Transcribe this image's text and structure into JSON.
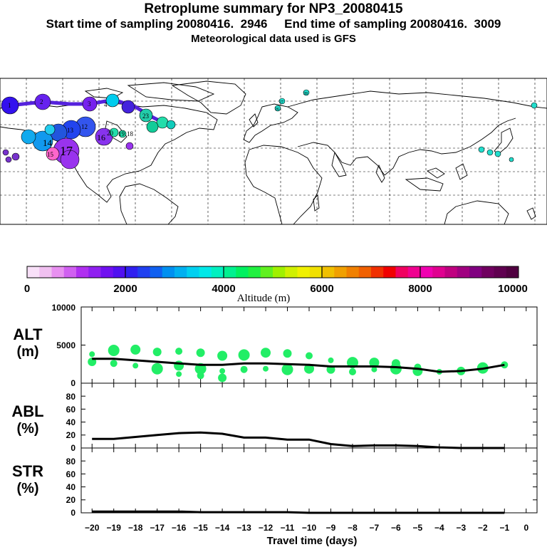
{
  "header": {
    "title": "Retroplume summary for NP3_20080415",
    "start_label": "Start time of sampling 20080416.  2946",
    "end_label": "End time of sampling 20080416.  3009",
    "met_line": "Meteorological data used is GFS"
  },
  "colorbar": {
    "xlabel": "Altitude (m)",
    "tick_labels": [
      "0",
      "2000",
      "4000",
      "6000",
      "8000",
      "10000"
    ],
    "colors": [
      "#f8e0f8",
      "#f0c0f0",
      "#e890f0",
      "#d060f0",
      "#b030f0",
      "#9020f0",
      "#7010f0",
      "#5010f0",
      "#3020f0",
      "#2040f0",
      "#1060f0",
      "#0090f0",
      "#00b0f0",
      "#00d0f0",
      "#00e8e8",
      "#00f0c0",
      "#00f090",
      "#00f060",
      "#20f040",
      "#60f020",
      "#a0f000",
      "#d0f000",
      "#f0f000",
      "#f0e000",
      "#f0c000",
      "#f0a000",
      "#f08000",
      "#f06000",
      "#f03000",
      "#f00000",
      "#f00060",
      "#f00090",
      "#f000b0",
      "#e00090",
      "#c00080",
      "#a00080",
      "#800080",
      "#700060",
      "#600050",
      "#500040"
    ]
  },
  "map_labels": [
    "1",
    "2",
    "3",
    "4",
    "12",
    "13",
    "14",
    "15",
    "17",
    "16",
    "20",
    "19",
    "18",
    "23",
    "26",
    "27",
    "28"
  ],
  "chart_data": [
    {
      "type": "line",
      "panel": "ALT",
      "ylabel_line1": "ALT",
      "ylabel_line2": "(m)",
      "ylim": [
        0,
        10000
      ],
      "ytick_labels": [
        "10000",
        "5000",
        "0"
      ],
      "x": [
        -20,
        -19,
        -18,
        -17,
        -16,
        -15,
        -14,
        -13,
        -12,
        -11,
        -10,
        -9,
        -8,
        -7,
        -6,
        -5,
        -4,
        -3,
        -2,
        -1
      ],
      "values": [
        3200,
        3200,
        3000,
        2800,
        2600,
        2400,
        2400,
        2600,
        2600,
        2500,
        2400,
        2200,
        2200,
        2200,
        2100,
        1900,
        1500,
        1600,
        1900,
        2400
      ],
      "points": [
        {
          "x": -20,
          "y": 3800
        },
        {
          "x": -20,
          "y": 2800
        },
        {
          "x": -19,
          "y": 4300
        },
        {
          "x": -19,
          "y": 2600
        },
        {
          "x": -18,
          "y": 4400
        },
        {
          "x": -18,
          "y": 2300
        },
        {
          "x": -17,
          "y": 4100
        },
        {
          "x": -17,
          "y": 1900
        },
        {
          "x": -16,
          "y": 4200
        },
        {
          "x": -16,
          "y": 2300
        },
        {
          "x": -16,
          "y": 1200
        },
        {
          "x": -15,
          "y": 4000
        },
        {
          "x": -15,
          "y": 1900
        },
        {
          "x": -15,
          "y": 1000
        },
        {
          "x": -14,
          "y": 3600
        },
        {
          "x": -14,
          "y": 1600
        },
        {
          "x": -14,
          "y": 700
        },
        {
          "x": -13,
          "y": 3700
        },
        {
          "x": -13,
          "y": 1800
        },
        {
          "x": -12,
          "y": 4000
        },
        {
          "x": -12,
          "y": 1900
        },
        {
          "x": -11,
          "y": 3900
        },
        {
          "x": -11,
          "y": 1800
        },
        {
          "x": -10,
          "y": 3600
        },
        {
          "x": -10,
          "y": 1900
        },
        {
          "x": -9,
          "y": 3000
        },
        {
          "x": -9,
          "y": 1800
        },
        {
          "x": -8,
          "y": 2700
        },
        {
          "x": -8,
          "y": 1500
        },
        {
          "x": -7,
          "y": 2700
        },
        {
          "x": -7,
          "y": 1800
        },
        {
          "x": -6,
          "y": 2600
        },
        {
          "x": -6,
          "y": 1900
        },
        {
          "x": -5,
          "y": 2100
        },
        {
          "x": -5,
          "y": 1600
        },
        {
          "x": -4,
          "y": 1500
        },
        {
          "x": -3,
          "y": 1600
        },
        {
          "x": -2,
          "y": 2000
        },
        {
          "x": -1,
          "y": 2400
        }
      ]
    },
    {
      "type": "line",
      "panel": "ABL",
      "ylabel_line1": "ABL",
      "ylabel_line2": "(%)",
      "ylim": [
        0,
        100
      ],
      "ytick_labels": [
        "80",
        "60",
        "40",
        "20",
        "0"
      ],
      "x": [
        -20,
        -19,
        -18,
        -17,
        -16,
        -15,
        -14,
        -13,
        -12,
        -11,
        -10,
        -9,
        -8,
        -7,
        -6,
        -5,
        -4,
        -3,
        -2,
        -1
      ],
      "values": [
        14,
        14,
        17,
        20,
        23,
        24,
        22,
        16,
        16,
        13,
        13,
        6,
        3,
        4,
        4,
        3,
        1,
        0,
        0,
        0
      ]
    },
    {
      "type": "line",
      "panel": "STR",
      "ylabel_line1": "STR",
      "ylabel_line2": "(%)",
      "ylim": [
        0,
        100
      ],
      "ytick_labels": [
        "80",
        "60",
        "40",
        "20",
        "0"
      ],
      "x": [
        -20,
        -19,
        -18,
        -17,
        -16,
        -15,
        -14,
        -13,
        -12,
        -11,
        -10,
        -9,
        -8,
        -7,
        -6,
        -5,
        -4,
        -3,
        -2,
        -1
      ],
      "values": [
        2,
        2,
        2,
        2,
        2,
        1,
        1,
        1,
        1,
        1,
        0,
        0,
        0,
        0,
        0,
        0,
        0,
        0,
        0,
        0
      ]
    }
  ],
  "xaxis": {
    "xlabel": "Travel time (days)",
    "tick_labels": [
      "−20",
      "−19",
      "−18",
      "−17",
      "−16",
      "−15",
      "−14",
      "−13",
      "−12",
      "−11",
      "−10",
      "−9",
      "−8",
      "−7",
      "−6",
      "−5",
      "−4",
      "−3",
      "−2",
      "−1",
      "0"
    ]
  },
  "colors": {
    "marker": "#22ee66",
    "line": "#000000"
  }
}
